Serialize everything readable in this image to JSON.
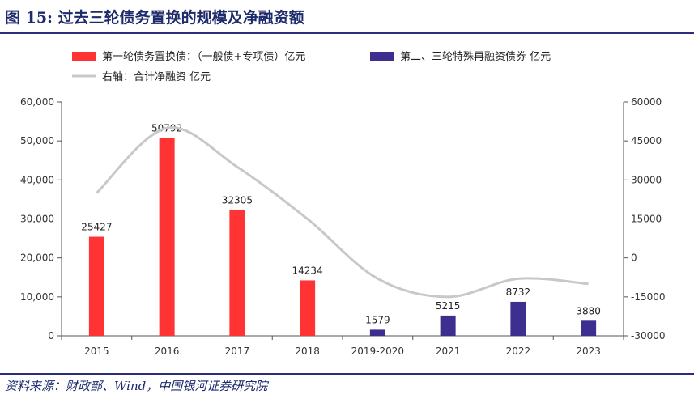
{
  "header": {
    "title": "图 15:  过去三轮债务置换的规模及净融资额"
  },
  "footer": {
    "source": "资料来源：财政部、Wind，中国银河证券研究院"
  },
  "chart_data": {
    "type": "bar",
    "categories": [
      "2015",
      "2016",
      "2017",
      "2018",
      "2019-2020",
      "2021",
      "2022",
      "2023"
    ],
    "series": [
      {
        "name": "第一轮债务置换债：（一般债+专项债）亿元",
        "kind": "bar",
        "axis": "left",
        "color": "#ff3333",
        "values": [
          25427,
          50792,
          32305,
          14234,
          null,
          null,
          null,
          null
        ],
        "labels": [
          "25427",
          "50792",
          "32305",
          "14234",
          null,
          null,
          null,
          null
        ]
      },
      {
        "name": "第二、三轮特殊再融资债券  亿元",
        "kind": "bar",
        "axis": "left",
        "color": "#3d2f8f",
        "values": [
          null,
          null,
          null,
          null,
          1579,
          5215,
          8732,
          3880
        ],
        "labels": [
          null,
          null,
          null,
          null,
          "1579",
          "5215",
          "8732",
          "3880"
        ]
      },
      {
        "name": "右轴：合计净融资  亿元",
        "kind": "line",
        "axis": "right",
        "color": "#c8c8c8",
        "values": [
          25000,
          50000,
          35000,
          15000,
          -8000,
          -15000,
          -8000,
          -10000
        ]
      }
    ],
    "left_axis": {
      "min": 0,
      "max": 60000,
      "ticks": [
        0,
        10000,
        20000,
        30000,
        40000,
        50000,
        60000
      ],
      "tick_labels": [
        "0",
        "10,000",
        "20,000",
        "30,000",
        "40,000",
        "50,000",
        "60,000"
      ]
    },
    "right_axis": {
      "min": -30000,
      "max": 60000,
      "ticks": [
        -30000,
        -15000,
        0,
        15000,
        30000,
        45000,
        60000
      ],
      "tick_labels": [
        "-30000",
        "-15000",
        "0",
        "15000",
        "30000",
        "45000",
        "60000"
      ]
    },
    "grid": false,
    "legend_position": "top-left"
  }
}
